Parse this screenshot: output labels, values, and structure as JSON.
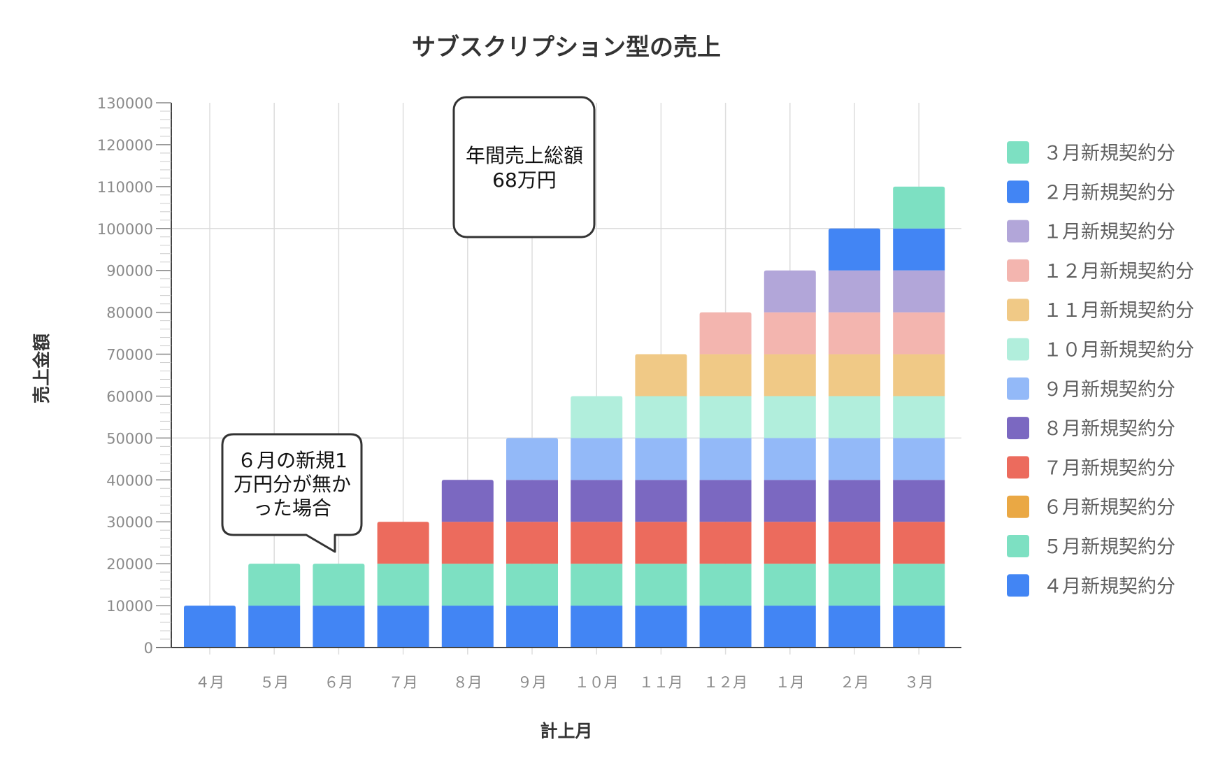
{
  "chart_data": {
    "type": "bar",
    "stacked": true,
    "title": "サブスクリプション型の売上",
    "xlabel": "計上月",
    "ylabel": "売上金額",
    "ylim": [
      0,
      130000
    ],
    "y_ticks": [
      0,
      10000,
      20000,
      30000,
      40000,
      50000,
      60000,
      70000,
      80000,
      90000,
      100000,
      110000,
      120000,
      130000
    ],
    "y_tick_labels": [
      "0",
      "10000",
      "20000",
      "30000",
      "40000",
      "50000",
      "60000",
      "70000",
      "80000",
      "90000",
      "100000",
      "110000",
      "120000",
      "130000"
    ],
    "grid": true,
    "legend_position": "right",
    "categories": [
      "４月",
      "５月",
      "６月",
      "７月",
      "８月",
      "９月",
      "１０月",
      "１１月",
      "１２月",
      "１月",
      "２月",
      "３月"
    ],
    "series": [
      {
        "name": "４月新規契約分",
        "color": "#4285f4",
        "values": [
          10000,
          10000,
          10000,
          10000,
          10000,
          10000,
          10000,
          10000,
          10000,
          10000,
          10000,
          10000
        ]
      },
      {
        "name": "５月新規契約分",
        "color": "#7de0c2",
        "values": [
          0,
          10000,
          10000,
          10000,
          10000,
          10000,
          10000,
          10000,
          10000,
          10000,
          10000,
          10000
        ]
      },
      {
        "name": "６月新規契約分",
        "color": "#eaa844",
        "values": [
          0,
          0,
          0,
          0,
          0,
          0,
          0,
          0,
          0,
          0,
          0,
          0
        ]
      },
      {
        "name": "７月新規契約分",
        "color": "#ec6b5d",
        "values": [
          0,
          0,
          0,
          10000,
          10000,
          10000,
          10000,
          10000,
          10000,
          10000,
          10000,
          10000
        ]
      },
      {
        "name": "８月新規契約分",
        "color": "#7b68c1",
        "values": [
          0,
          0,
          0,
          0,
          10000,
          10000,
          10000,
          10000,
          10000,
          10000,
          10000,
          10000
        ]
      },
      {
        "name": "９月新規契約分",
        "color": "#93b9f8",
        "values": [
          0,
          0,
          0,
          0,
          0,
          10000,
          10000,
          10000,
          10000,
          10000,
          10000,
          10000
        ]
      },
      {
        "name": "１０月新規契約分",
        "color": "#b1eedc",
        "values": [
          0,
          0,
          0,
          0,
          0,
          0,
          10000,
          10000,
          10000,
          10000,
          10000,
          10000
        ]
      },
      {
        "name": "１１月新規契約分",
        "color": "#f0c986",
        "values": [
          0,
          0,
          0,
          0,
          0,
          0,
          0,
          10000,
          10000,
          10000,
          10000,
          10000
        ]
      },
      {
        "name": "１２月新規契約分",
        "color": "#f3b5af",
        "values": [
          0,
          0,
          0,
          0,
          0,
          0,
          0,
          0,
          10000,
          10000,
          10000,
          10000
        ]
      },
      {
        "name": "１月新規契約分",
        "color": "#b2a6d9",
        "values": [
          0,
          0,
          0,
          0,
          0,
          0,
          0,
          0,
          0,
          10000,
          10000,
          10000
        ]
      },
      {
        "name": "２月新規契約分",
        "color": "#4285f4",
        "values": [
          0,
          0,
          0,
          0,
          0,
          0,
          0,
          0,
          0,
          0,
          10000,
          10000
        ]
      },
      {
        "name": "３月新規契約分",
        "color": "#7de0c2",
        "values": [
          0,
          0,
          0,
          0,
          0,
          0,
          0,
          0,
          0,
          0,
          0,
          10000
        ]
      }
    ],
    "legend_order": [
      "３月新規契約分",
      "２月新規契約分",
      "１月新規契約分",
      "１２月新規契約分",
      "１１月新規契約分",
      "１０月新規契約分",
      "９月新規契約分",
      "８月新規契約分",
      "７月新規契約分",
      "６月新規契約分",
      "５月新規契約分",
      "４月新規契約分"
    ],
    "annotations": [
      {
        "text_lines": [
          "年間売上総額",
          "68万円"
        ]
      },
      {
        "text_lines": [
          "６月の新規1",
          "万円分が無か",
          "った場合"
        ]
      }
    ]
  }
}
